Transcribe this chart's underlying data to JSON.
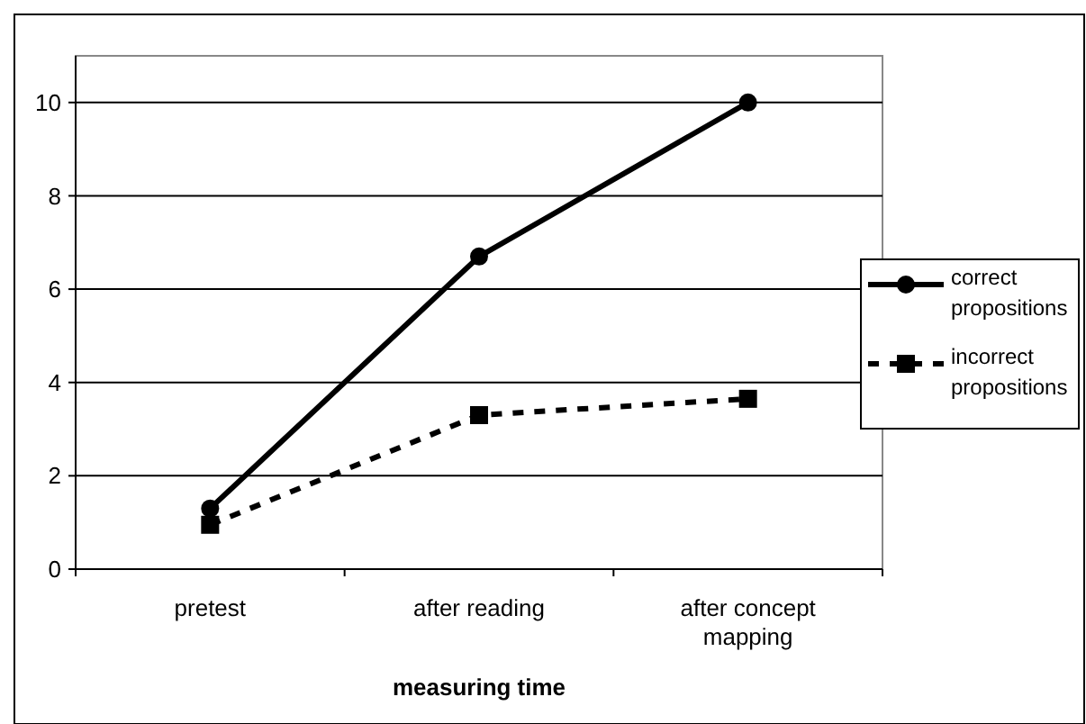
{
  "chart_data": {
    "type": "line",
    "xlabel": "measuring time",
    "categories": [
      "pretest",
      "after reading",
      "after concept mapping"
    ],
    "series": [
      {
        "name": "correct propositions",
        "color": "#000000",
        "values": [
          1.3,
          6.7,
          10.0
        ],
        "marker": "circle",
        "line_style": "solid"
      },
      {
        "name": "incorrect propositions",
        "color": "#000000",
        "values": [
          0.95,
          3.3,
          3.65
        ],
        "marker": "square",
        "line_style": "dashed"
      }
    ],
    "ylim": [
      0,
      11
    ],
    "yticks": [
      0,
      2,
      4,
      6,
      8,
      10
    ],
    "grid": "y",
    "legend": "right"
  }
}
